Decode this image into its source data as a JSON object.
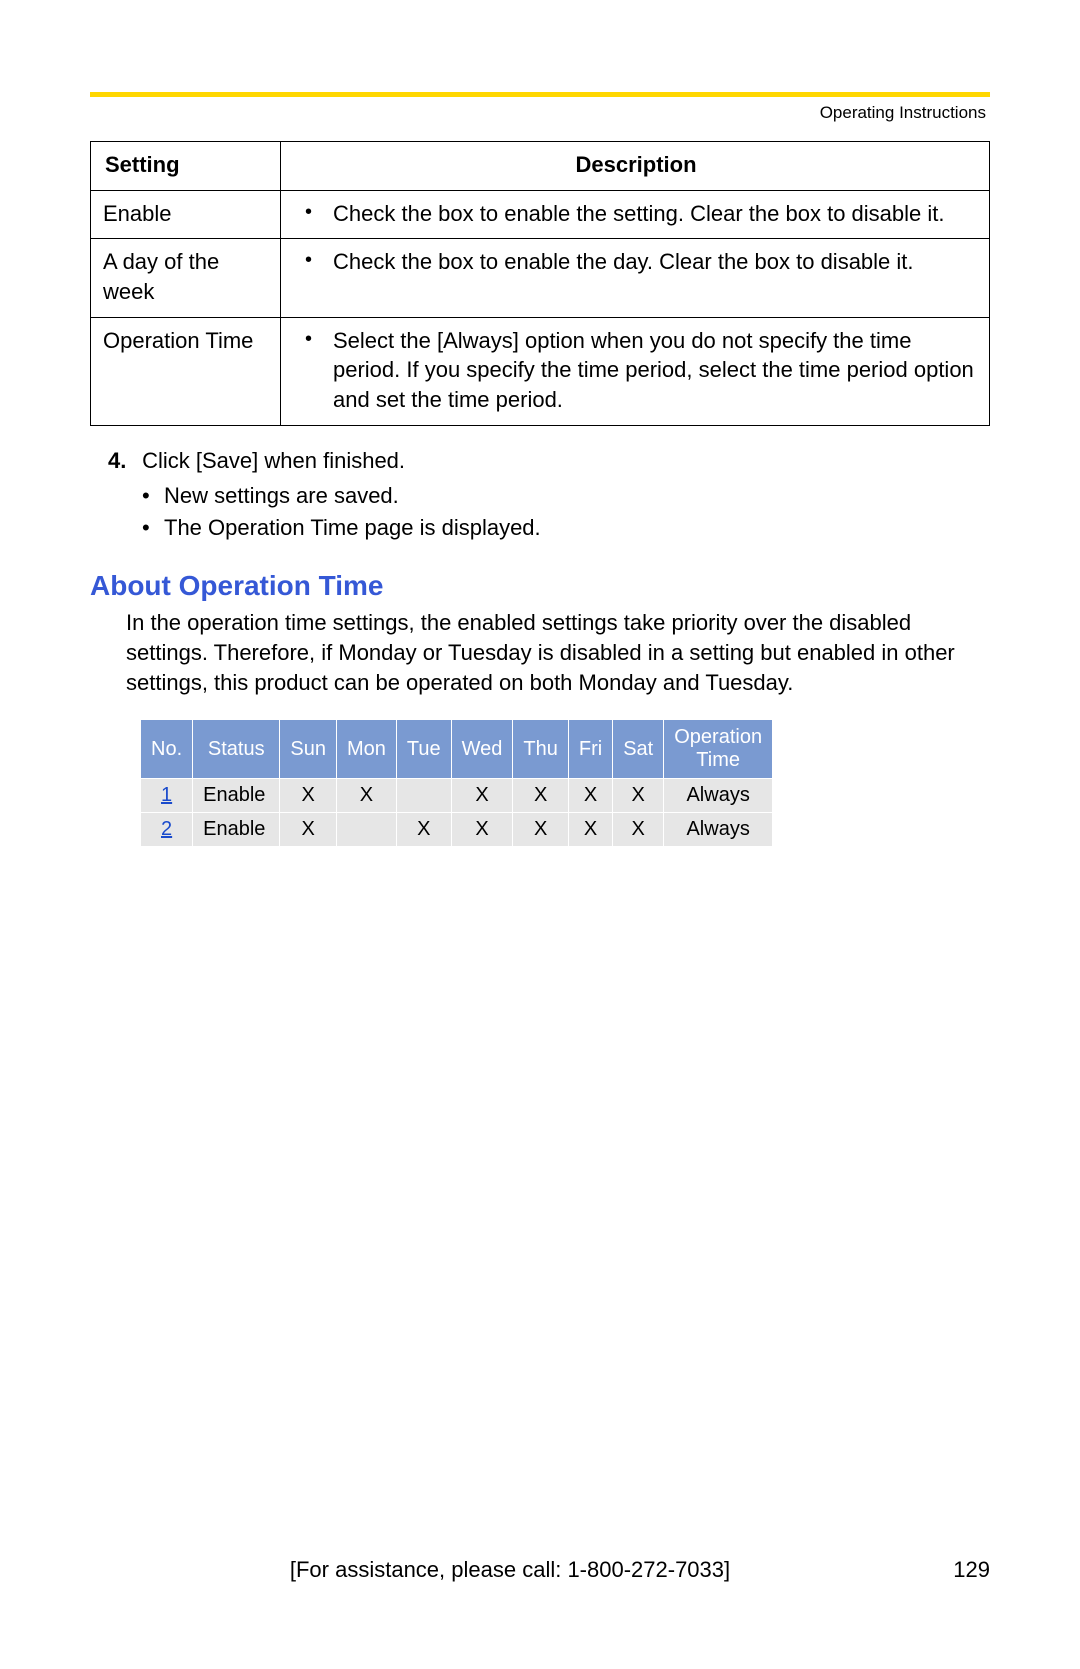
{
  "header": {
    "label": "Operating Instructions"
  },
  "accent_color": "#ffd700",
  "settings_table": {
    "columns": [
      "Setting",
      "Description"
    ],
    "rows": [
      {
        "setting": "Enable",
        "description": "Check the box to enable the setting. Clear the box to disable it."
      },
      {
        "setting": "A day of the week",
        "description": "Check the box to enable the day. Clear the box to disable it."
      },
      {
        "setting": "Operation Time",
        "description": "Select the [Always] option when you do not specify the time period. If you specify the time period, select the time period option and set the time period."
      }
    ]
  },
  "step": {
    "number": "4.",
    "text": "Click [Save] when finished.",
    "bullets": [
      "New settings are saved.",
      "The Operation Time page is displayed."
    ]
  },
  "section": {
    "heading": "About Operation Time",
    "body": "In the operation time settings, the enabled settings take priority over the disabled settings. Therefore, if Monday or Tuesday is disabled in a setting but enabled in other settings, this product can be operated on both Monday and Tuesday."
  },
  "op_table": {
    "header_bg": "#7a9ad1",
    "header_fg": "#ffffff",
    "row_bg": "#e6e6e6",
    "link_color": "#1a4bcc",
    "columns": [
      "No.",
      "Status",
      "Sun",
      "Mon",
      "Tue",
      "Wed",
      "Thu",
      "Fri",
      "Sat",
      "Operation\nTime"
    ],
    "rows": [
      {
        "no": "1",
        "status": "Enable",
        "sun": "X",
        "mon": "X",
        "tue": "",
        "wed": "X",
        "thu": "X",
        "fri": "X",
        "sat": "X",
        "optime": "Always"
      },
      {
        "no": "2",
        "status": "Enable",
        "sun": "X",
        "mon": "",
        "tue": "X",
        "wed": "X",
        "thu": "X",
        "fri": "X",
        "sat": "X",
        "optime": "Always"
      }
    ]
  },
  "footer": {
    "assist": "[For assistance, please call: 1-800-272-7033]",
    "page": "129"
  }
}
